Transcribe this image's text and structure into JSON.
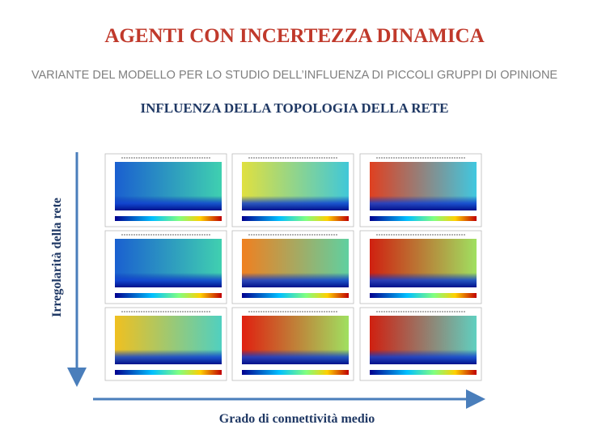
{
  "header": {
    "title": "AGENTI CON INCERTEZZA DINAMICA",
    "subtitle": "VARIANTE DEL MODELLO PER LO STUDIO DELL’INFLUENZA DI PICCOLI GRUPPI DI OPINIONE"
  },
  "heading": "INFLUENZA DELLA TOPOLOGIA DELLA RETE",
  "axes": {
    "y_label": "Irregolarità della rete",
    "x_label": "Grado di connettività medio"
  }
}
